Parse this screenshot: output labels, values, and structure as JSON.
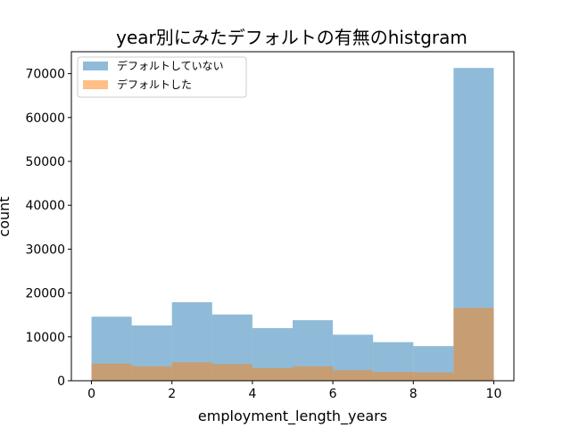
{
  "chart_data": {
    "type": "bar",
    "title": "year別にみたデフォルトの有無のhistgram",
    "xlabel": "employment_length_years",
    "ylabel": "count",
    "xlim": [
      -0.5,
      10.5
    ],
    "ylim": [
      0,
      75000
    ],
    "bin_edges": [
      0,
      1,
      2,
      3,
      4,
      5,
      6,
      7,
      8,
      9,
      10
    ],
    "x_ticks": [
      0,
      2,
      4,
      6,
      8,
      10
    ],
    "y_ticks": [
      0,
      10000,
      20000,
      30000,
      40000,
      50000,
      60000,
      70000
    ],
    "legend_position": "top-left",
    "grid": false,
    "series": [
      {
        "name": "デフォルトしていない",
        "color": "#1f77b4",
        "opacity": 0.5,
        "values": [
          14600,
          12600,
          17900,
          15100,
          12000,
          13800,
          10500,
          8800,
          7900,
          71300
        ]
      },
      {
        "name": "デフォルトした",
        "color": "#ff7f0e",
        "opacity": 0.5,
        "values": [
          3900,
          3300,
          4200,
          3800,
          2900,
          3300,
          2400,
          2000,
          1900,
          16600
        ]
      }
    ]
  }
}
